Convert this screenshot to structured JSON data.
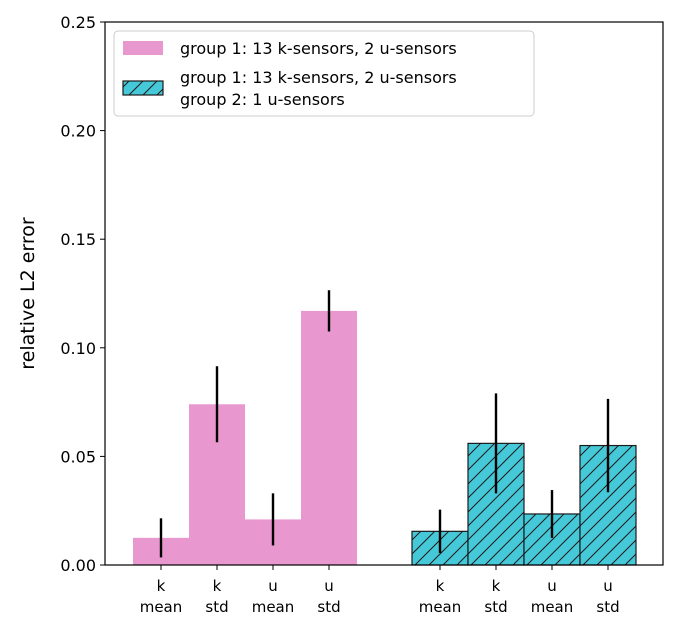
{
  "chart_data": {
    "type": "bar",
    "ylabel": "relative L2 error",
    "ylim": [
      0,
      0.25
    ],
    "yticks": [
      "0.00",
      "0.05",
      "0.10",
      "0.15",
      "0.20",
      "0.25"
    ],
    "grid": false,
    "legend_position": "top-left",
    "categories": [
      "k\nmean",
      "k\nstd",
      "u\nmean",
      "u\nstd"
    ],
    "series": [
      {
        "name": "group 1: 13 k-sensors, 2 u-sensors",
        "color": "#e897cf",
        "hatch": false,
        "values": [
          0.0125,
          0.074,
          0.021,
          0.117
        ],
        "errors": [
          0.009,
          0.0175,
          0.012,
          0.0095
        ]
      },
      {
        "name": "group 1: 13 k-sensors, 2 u-sensors\ngroup 2: 1 u-sensors",
        "color": "#45c8d8",
        "hatch": true,
        "values": [
          0.0155,
          0.056,
          0.0235,
          0.055
        ],
        "errors": [
          0.01,
          0.023,
          0.011,
          0.0215
        ]
      }
    ]
  }
}
